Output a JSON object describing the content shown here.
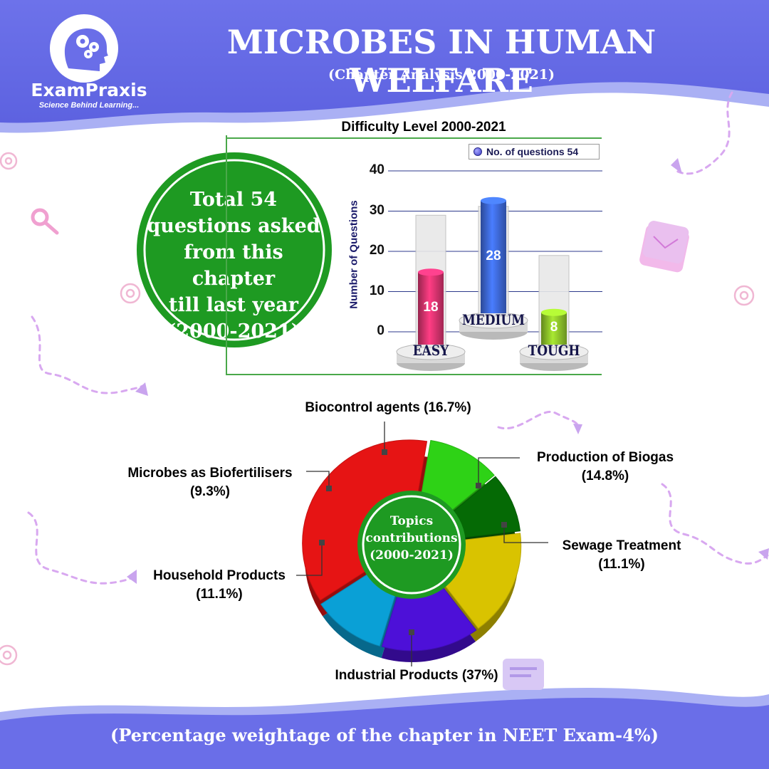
{
  "brand": {
    "name": "ExamPraxis",
    "tagline": "Science Behind Learning..."
  },
  "header": {
    "title": "MICROBES IN HUMAN WELFARE",
    "subtitle": "(Chapter Analysis 2000-2021)"
  },
  "total_badge": {
    "lines": [
      "Total 54",
      "questions asked",
      "from this chapter",
      "till last year",
      "(2000-2021)"
    ]
  },
  "colors": {
    "header_bg": "#6a6ee8",
    "badge_green": "#1f9a24",
    "easy": "#d8336e",
    "medium": "#3d68d8",
    "tough": "#8dc22a",
    "footer_bg": "#6a6ee8"
  },
  "chart_data": [
    {
      "type": "bar",
      "title": "Difficulty Level 2000-2021",
      "categories": [
        "EASY",
        "MEDIUM",
        "TOUGH"
      ],
      "series": [
        {
          "name": "No. of questions 54",
          "values": [
            18,
            28,
            8
          ]
        }
      ],
      "ylabel": "Number of Questions",
      "ylim": [
        0,
        40
      ],
      "yticks": [
        "0",
        "10",
        "20",
        "30",
        "40"
      ],
      "grid": true,
      "legend": "top-right"
    },
    {
      "type": "pie",
      "center_label": [
        "Topics",
        "contributions",
        "(2000-2021)"
      ],
      "slices": [
        {
          "label": "Biocontrol agents",
          "pct_text": "(16.7%)",
          "value": 16.7,
          "color": "#d9c300"
        },
        {
          "label": "Production of Biogas",
          "pct_text": "(14.8%)",
          "value": 14.8,
          "color": "#4d10d8"
        },
        {
          "label": "Sewage Treatment",
          "pct_text": "(11.1%)",
          "value": 11.1,
          "color": "#0aa0d6"
        },
        {
          "label": "Industrial Products",
          "pct_text": "(37%)",
          "value": 37,
          "color": "#e61414"
        },
        {
          "label": "Household Products",
          "pct_text": "(11.1%)",
          "value": 11.1,
          "color": "#2ed216"
        },
        {
          "label": "Microbes as Biofertilisers",
          "pct_text": "(9.3%)",
          "value": 9.3,
          "color": "#056a05"
        }
      ]
    }
  ],
  "footer": {
    "text": "(Percentage weightage of the chapter in NEET Exam-4%)"
  }
}
